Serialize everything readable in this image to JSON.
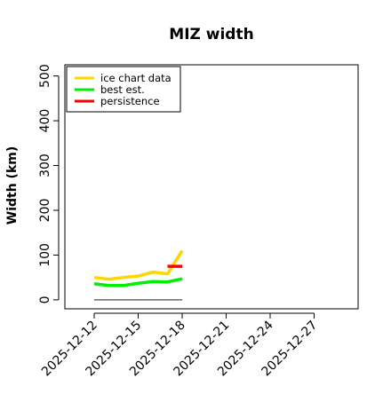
{
  "chart_data": {
    "type": "line",
    "title": "MIZ width",
    "xlabel": "",
    "ylabel": "Width (km)",
    "ylim": [
      -20,
      525
    ],
    "xlim": [
      "2025-12-10",
      "2025-12-30"
    ],
    "yticks": [
      0,
      100,
      200,
      300,
      400,
      500
    ],
    "xticks": [
      "2025-12-12",
      "2025-12-15",
      "2025-12-18",
      "2025-12-21",
      "2025-12-24",
      "2025-12-27"
    ],
    "grid": false,
    "legend_position": "top-left",
    "series": [
      {
        "name": "ice chart data",
        "color": "#ffd700",
        "x": [
          "2025-12-12",
          "2025-12-13",
          "2025-12-14",
          "2025-12-15",
          "2025-12-16",
          "2025-12-17",
          "2025-12-18"
        ],
        "y": [
          50,
          46,
          50,
          53,
          62,
          58,
          110
        ]
      },
      {
        "name": "best est.",
        "color": "#00ee00",
        "x": [
          "2025-12-12",
          "2025-12-13",
          "2025-12-14",
          "2025-12-15",
          "2025-12-16",
          "2025-12-17",
          "2025-12-18"
        ],
        "y": [
          36,
          32,
          32,
          37,
          41,
          40,
          47
        ]
      },
      {
        "name": "persistence",
        "color": "#ff0000",
        "x": [
          "2025-12-17",
          "2025-12-18"
        ],
        "y": [
          75,
          75
        ]
      }
    ],
    "reference_line": {
      "color": "#666666",
      "x": [
        "2025-12-12",
        "2025-12-18"
      ],
      "y": [
        0,
        0
      ]
    }
  }
}
